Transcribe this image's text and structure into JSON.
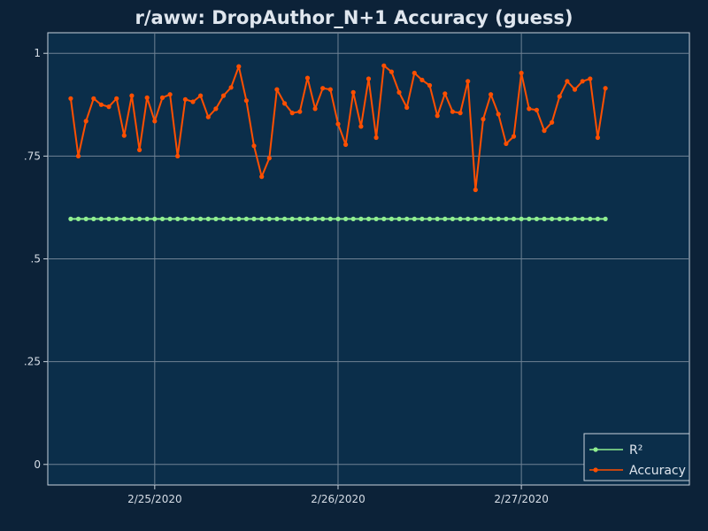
{
  "chart_data": {
    "type": "line",
    "title": "r/aww: DropAuthor_N+1 Accuracy (guess)",
    "xlabel": "",
    "ylabel": "",
    "x_start": "2020-02-24T13:00",
    "x_step_hours": 1,
    "xlim": [
      "2020-02-24T10:00",
      "2020-02-27T22:00"
    ],
    "ylim": [
      -0.05,
      1.05
    ],
    "x_ticks": [
      "2/25/2020",
      "2/26/2020",
      "2/27/2020"
    ],
    "y_ticks": [
      "1",
      ".75",
      ".5",
      ".25",
      "0"
    ],
    "y_tick_values": [
      1,
      0.75,
      0.5,
      0.25,
      0
    ],
    "grid": true,
    "legend_position": "bottom-right",
    "series": [
      {
        "name": "R²",
        "color": "#90ee90",
        "values": [
          0.597,
          0.597,
          0.597,
          0.597,
          0.597,
          0.597,
          0.597,
          0.597,
          0.597,
          0.597,
          0.597,
          0.597,
          0.597,
          0.597,
          0.597,
          0.597,
          0.597,
          0.597,
          0.597,
          0.597,
          0.597,
          0.597,
          0.597,
          0.597,
          0.597,
          0.597,
          0.597,
          0.597,
          0.597,
          0.597,
          0.597,
          0.597,
          0.597,
          0.597,
          0.597,
          0.597,
          0.597,
          0.597,
          0.597,
          0.597,
          0.597,
          0.597,
          0.597,
          0.597,
          0.597,
          0.597,
          0.597,
          0.597,
          0.597,
          0.597,
          0.597,
          0.597,
          0.597,
          0.597,
          0.597,
          0.597,
          0.597,
          0.597,
          0.597,
          0.597,
          0.597,
          0.597,
          0.597,
          0.597,
          0.597,
          0.597,
          0.597,
          0.597,
          0.597,
          0.597,
          0.597
        ]
      },
      {
        "name": "Accuracy",
        "color": "#ff4f00",
        "values": [
          0.89,
          0.75,
          0.835,
          0.89,
          0.875,
          0.87,
          0.89,
          0.8,
          0.897,
          0.765,
          0.892,
          0.835,
          0.892,
          0.9,
          0.75,
          0.888,
          0.882,
          0.897,
          0.845,
          0.865,
          0.897,
          0.917,
          0.968,
          0.885,
          0.775,
          0.7,
          0.745,
          0.912,
          0.878,
          0.855,
          0.858,
          0.94,
          0.865,
          0.915,
          0.912,
          0.828,
          0.778,
          0.905,
          0.822,
          0.938,
          0.795,
          0.97,
          0.955,
          0.905,
          0.868,
          0.952,
          0.935,
          0.922,
          0.848,
          0.902,
          0.858,
          0.855,
          0.932,
          0.668,
          0.84,
          0.9,
          0.852,
          0.78,
          0.798,
          0.952,
          0.865,
          0.862,
          0.812,
          0.832,
          0.895,
          0.932,
          0.912,
          0.932,
          0.938,
          0.795,
          0.915
        ]
      }
    ]
  }
}
